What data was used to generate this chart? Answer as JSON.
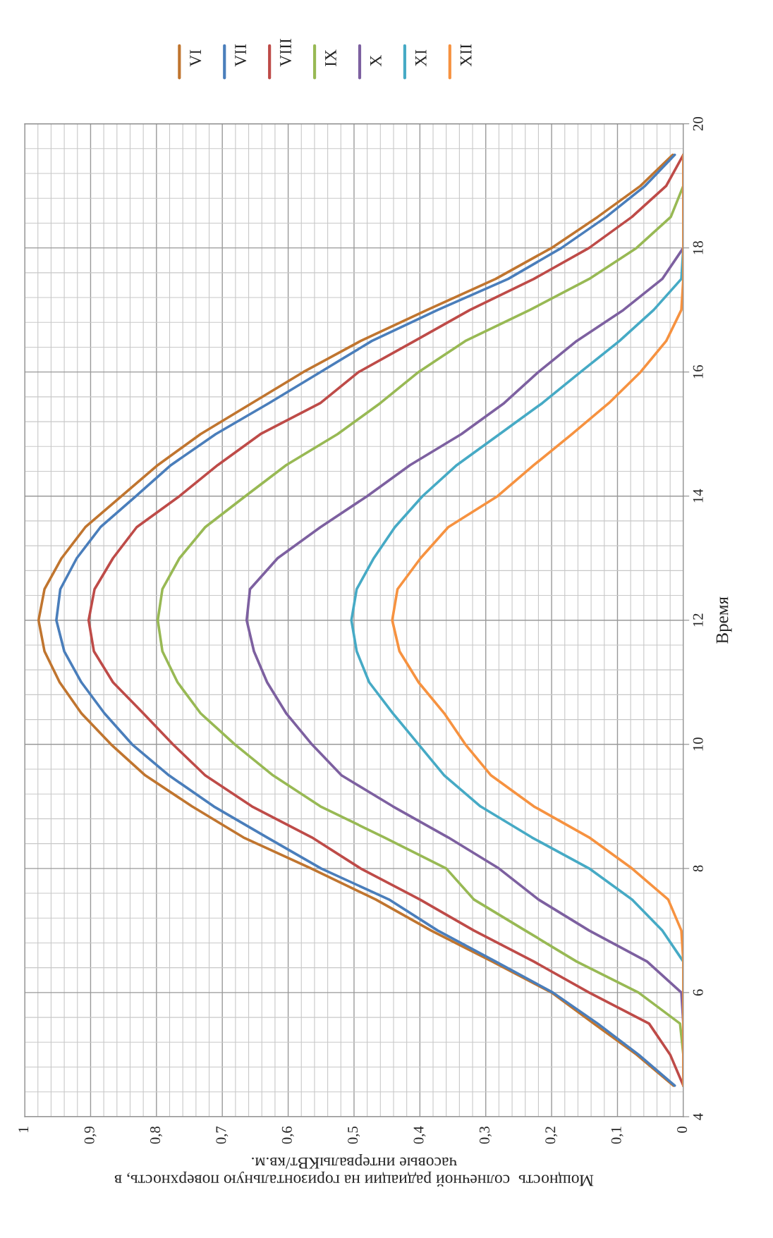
{
  "chart_data": {
    "type": "line",
    "ylabel": "Время",
    "xlabel": "Мощность  солнечной радиации на горизонтальную поверхность, в\nчасовые интервалыКВт/кв.м.",
    "series": [
      {
        "name": "VI",
        "color": "#c0752f",
        "x": [
          0.015,
          0.071,
          0.136,
          0.2,
          0.29,
          0.383,
          0.467,
          0.565,
          0.668,
          0.746,
          0.817,
          0.869,
          0.914,
          0.947,
          0.97,
          0.979,
          0.97,
          0.944,
          0.908,
          0.853,
          0.798,
          0.733,
          0.655,
          0.577,
          0.49,
          0.389,
          0.285,
          0.2,
          0.13,
          0.065,
          0.016
        ],
        "values": [
          4.5,
          5,
          5.5,
          6,
          6.5,
          7,
          7.5,
          8,
          8.5,
          9,
          9.5,
          10,
          10.5,
          11,
          11.5,
          12,
          12.5,
          13,
          13.5,
          14,
          14.5,
          15,
          15.5,
          16,
          16.5,
          17,
          17.5,
          18,
          18.5,
          19,
          19.5
        ]
      },
      {
        "name": "VII",
        "color": "#4a7ebb",
        "x": [
          0.013,
          0.068,
          0.13,
          0.198,
          0.285,
          0.373,
          0.447,
          0.55,
          0.632,
          0.713,
          0.781,
          0.837,
          0.879,
          0.914,
          0.94,
          0.952,
          0.946,
          0.921,
          0.885,
          0.831,
          0.778,
          0.71,
          0.629,
          0.551,
          0.473,
          0.373,
          0.266,
          0.185,
          0.117,
          0.058,
          0.013
        ],
        "values": [
          4.5,
          5,
          5.5,
          6,
          6.5,
          7,
          7.5,
          8,
          8.5,
          9,
          9.5,
          10,
          10.5,
          11,
          11.5,
          12,
          12.5,
          13,
          13.5,
          14,
          14.5,
          15,
          15.5,
          16,
          16.5,
          17,
          17.5,
          18,
          18.5,
          19,
          19.5
        ]
      },
      {
        "name": "VIII",
        "color": "#be4b48",
        "x": [
          0,
          0.02,
          0.052,
          0.143,
          0.227,
          0.318,
          0.4,
          0.49,
          0.564,
          0.655,
          0.726,
          0.775,
          0.82,
          0.866,
          0.895,
          0.903,
          0.894,
          0.866,
          0.83,
          0.765,
          0.707,
          0.642,
          0.551,
          0.493,
          0.408,
          0.324,
          0.227,
          0.143,
          0.078,
          0.026,
          0
        ],
        "values": [
          4.5,
          5,
          5.5,
          6,
          6.5,
          7,
          7.5,
          8,
          8.5,
          9,
          9.5,
          10,
          10.5,
          11,
          11.5,
          12,
          12.5,
          13,
          13.5,
          14,
          14.5,
          15,
          15.5,
          16,
          16.5,
          17,
          17.5,
          18,
          18.5,
          19,
          19.5
        ]
      },
      {
        "name": "IX",
        "color": "#98b954",
        "x": [
          0,
          0,
          0.005,
          0.068,
          0.162,
          0.24,
          0.318,
          0.36,
          0.454,
          0.551,
          0.623,
          0.681,
          0.733,
          0.768,
          0.791,
          0.798,
          0.791,
          0.765,
          0.726,
          0.665,
          0.603,
          0.525,
          0.46,
          0.402,
          0.331,
          0.233,
          0.143,
          0.071,
          0.019,
          0,
          0
        ],
        "values": [
          4.5,
          5,
          5.5,
          6,
          6.5,
          7,
          7.5,
          8,
          8.5,
          9,
          9.5,
          10,
          10.5,
          11,
          11.5,
          12,
          12.5,
          13,
          13.5,
          14,
          14.5,
          15,
          15.5,
          16,
          16.5,
          17,
          17.5,
          18,
          18.5,
          19,
          19.5
        ]
      },
      {
        "name": "X",
        "color": "#7d60a0",
        "x": [
          0,
          0,
          0,
          0.003,
          0.055,
          0.143,
          0.22,
          0.28,
          0.357,
          0.441,
          0.519,
          0.564,
          0.603,
          0.632,
          0.652,
          0.663,
          0.658,
          0.616,
          0.551,
          0.48,
          0.415,
          0.337,
          0.272,
          0.22,
          0.162,
          0.091,
          0.032,
          0,
          0,
          0,
          0
        ],
        "values": [
          4.5,
          5,
          5.5,
          6,
          6.5,
          7,
          7.5,
          8,
          8.5,
          9,
          9.5,
          10,
          10.5,
          11,
          11.5,
          12,
          12.5,
          13,
          13.5,
          14,
          14.5,
          15,
          15.5,
          16,
          16.5,
          17,
          17.5,
          18,
          18.5,
          19,
          19.5
        ]
      },
      {
        "name": "XI",
        "color": "#46aac5",
        "x": [
          null,
          null,
          null,
          0,
          0,
          0.032,
          0.078,
          0.143,
          0.23,
          0.308,
          0.363,
          0.402,
          0.441,
          0.477,
          0.496,
          0.504,
          0.496,
          0.47,
          0.438,
          0.396,
          0.344,
          0.279,
          0.214,
          0.156,
          0.097,
          0.045,
          0.003,
          0,
          0,
          null,
          null
        ],
        "values": [
          null,
          null,
          null,
          6,
          6.5,
          7,
          7.5,
          8,
          8.5,
          9,
          9.5,
          10,
          10.5,
          11,
          11.5,
          12,
          12.5,
          13,
          13.5,
          14,
          14.5,
          15,
          15.5,
          16,
          16.5,
          17,
          17.5,
          18,
          18.5,
          null,
          null
        ]
      },
      {
        "name": "XII",
        "color": "#f69240",
        "x": [
          0,
          0,
          0,
          0,
          0,
          0.003,
          0.023,
          0.078,
          0.143,
          0.227,
          0.292,
          0.331,
          0.363,
          0.402,
          0.431,
          0.442,
          0.434,
          0.399,
          0.357,
          0.282,
          0.227,
          0.169,
          0.113,
          0.065,
          0.026,
          0.003,
          0,
          0,
          0,
          0,
          0
        ],
        "values": [
          4.5,
          5,
          5.5,
          6,
          6.5,
          7,
          7.5,
          8,
          8.5,
          9,
          9.5,
          10,
          10.5,
          11,
          11.5,
          12,
          12.5,
          13,
          13.5,
          14,
          14.5,
          15,
          15.5,
          16,
          16.5,
          17,
          17.5,
          18,
          18.5,
          19,
          19.5
        ]
      }
    ],
    "ylim": [
      4,
      20
    ],
    "yticks": [
      4,
      6,
      8,
      10,
      12,
      14,
      16,
      18,
      20
    ],
    "xlim": [
      1,
      0
    ],
    "xticks": [
      0,
      {
        "value": 0.1,
        "label": "0,1"
      },
      {
        "value": 0.2,
        "label": "0,2"
      },
      {
        "value": 0.3,
        "label": "0,3"
      },
      {
        "value": 0.4,
        "label": "0,4"
      },
      {
        "value": 0.5,
        "label": "0,5"
      },
      {
        "value": 0.6,
        "label": "0,6"
      },
      {
        "value": 0.7,
        "label": "0,7"
      },
      {
        "value": 0.8,
        "label": "0,8"
      },
      {
        "value": 0.9,
        "label": "0,9"
      },
      1
    ],
    "grid": true,
    "legend": "top",
    "marker": "none",
    "line_style": "solid"
  }
}
